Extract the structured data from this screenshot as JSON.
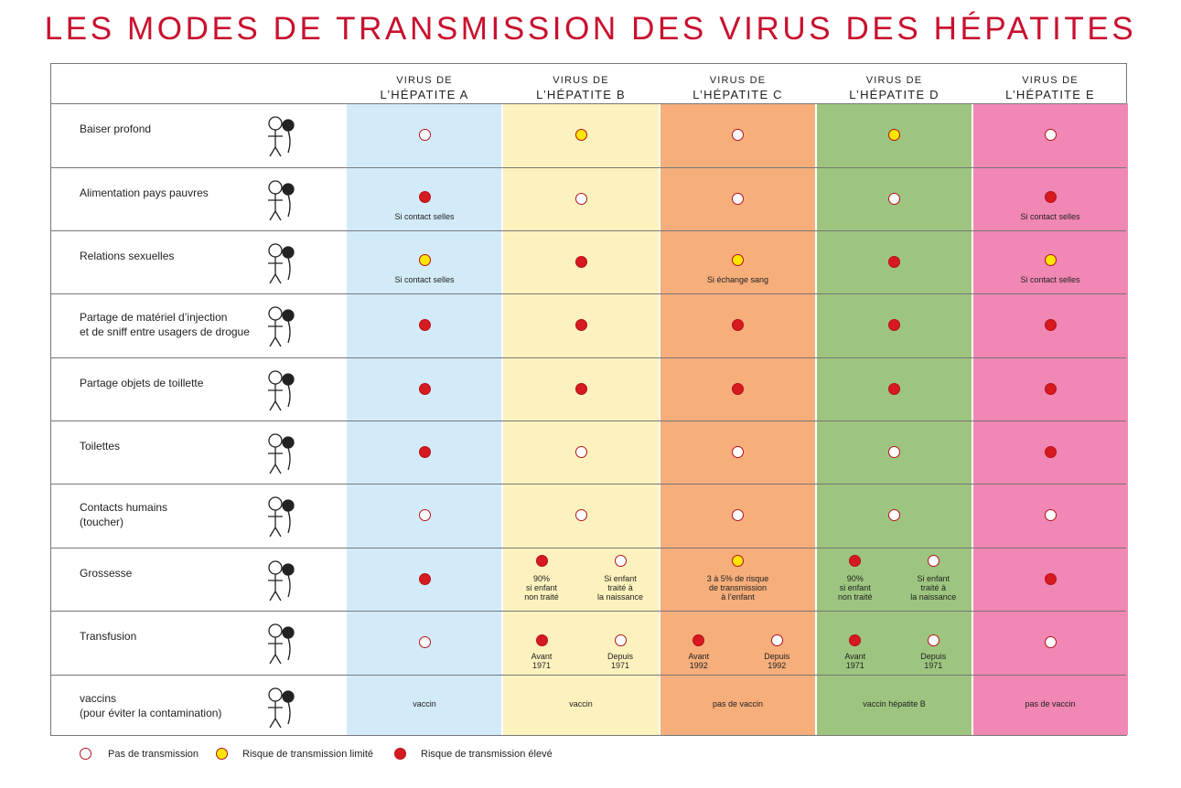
{
  "title": "LES MODES DE TRANSMISSION DES VIRUS DES HÉPATITES",
  "colors": {
    "A": "#d3ebf9",
    "B": "#fdf2bd",
    "C": "#f6ae7b",
    "D": "#9dc57f",
    "E": "#f087b4",
    "high": "#d71920",
    "low": "#ffe600"
  },
  "columns": [
    {
      "line1": "VIRUS DE",
      "line2": "L’HÉPATITE A"
    },
    {
      "line1": "VIRUS DE",
      "line2": "L’HÉPATITE B"
    },
    {
      "line1": "VIRUS DE",
      "line2": "L’HÉPATITE C"
    },
    {
      "line1": "VIRUS DE",
      "line2": "L’HÉPATITE D"
    },
    {
      "line1": "VIRUS DE",
      "line2": "L’HÉPATITE E"
    }
  ],
  "rows": [
    {
      "label": "Baiser profond",
      "icon": "kiss-icon",
      "cells": [
        [
          {
            "r": "none"
          }
        ],
        [
          {
            "r": "low"
          }
        ],
        [
          {
            "r": "none"
          }
        ],
        [
          {
            "r": "low"
          }
        ],
        [
          {
            "r": "none"
          }
        ]
      ]
    },
    {
      "label": "Alimentation pays pauvres",
      "icon": "eating-icon",
      "cells": [
        [
          {
            "r": "high",
            "t": "Si contact selles"
          }
        ],
        [
          {
            "r": "none"
          }
        ],
        [
          {
            "r": "none"
          }
        ],
        [
          {
            "r": "none"
          }
        ],
        [
          {
            "r": "high",
            "t": "Si contact selles"
          }
        ]
      ]
    },
    {
      "label": "Relations sexuelles",
      "icon": "couple-icon",
      "cells": [
        [
          {
            "r": "low",
            "t": "Si contact selles"
          }
        ],
        [
          {
            "r": "high"
          }
        ],
        [
          {
            "r": "low",
            "t": "Si échange sang"
          }
        ],
        [
          {
            "r": "high"
          }
        ],
        [
          {
            "r": "low",
            "t": "Si contact selles"
          }
        ]
      ]
    },
    {
      "label": "Partage de matériel d’injection\net de sniff entre usagers de drogue",
      "icon": "syringe-user-icon",
      "cells": [
        [
          {
            "r": "high"
          }
        ],
        [
          {
            "r": "high"
          }
        ],
        [
          {
            "r": "high"
          }
        ],
        [
          {
            "r": "high"
          }
        ],
        [
          {
            "r": "high"
          }
        ]
      ]
    },
    {
      "label": "Partage objets de toillette",
      "icon": "toiletries-icon",
      "cells": [
        [
          {
            "r": "high"
          }
        ],
        [
          {
            "r": "high"
          }
        ],
        [
          {
            "r": "high"
          }
        ],
        [
          {
            "r": "high"
          }
        ],
        [
          {
            "r": "high"
          }
        ]
      ]
    },
    {
      "label": "Toilettes",
      "icon": "toilet-icon",
      "cells": [
        [
          {
            "r": "high"
          }
        ],
        [
          {
            "r": "none"
          }
        ],
        [
          {
            "r": "none"
          }
        ],
        [
          {
            "r": "none"
          }
        ],
        [
          {
            "r": "high"
          }
        ]
      ]
    },
    {
      "label": "Contacts humains\n(toucher)",
      "icon": "hug-icon",
      "cells": [
        [
          {
            "r": "none"
          }
        ],
        [
          {
            "r": "none"
          }
        ],
        [
          {
            "r": "none"
          }
        ],
        [
          {
            "r": "none"
          }
        ],
        [
          {
            "r": "none"
          }
        ]
      ]
    },
    {
      "label": "Grossesse",
      "icon": "pregnancy-icon",
      "cells": [
        [
          {
            "r": "high"
          }
        ],
        [
          {
            "r": "high",
            "t": "90%\nsi enfant\nnon traité"
          },
          {
            "r": "none",
            "t": "Si enfant\ntraité à\nla naissance"
          }
        ],
        [
          {
            "r": "low",
            "t": "3 à 5% de risque\nde transmission\nà l’enfant"
          }
        ],
        [
          {
            "r": "high",
            "t": "90%\nsi enfant\nnon traité"
          },
          {
            "r": "none",
            "t": "Si enfant\ntraité à\nla naissance"
          }
        ],
        [
          {
            "r": "high"
          }
        ]
      ]
    },
    {
      "label": "Transfusion",
      "icon": "transfusion-icon",
      "cells": [
        [
          {
            "r": "none"
          }
        ],
        [
          {
            "r": "high",
            "t": "Avant\n1971"
          },
          {
            "r": "none",
            "t": "Depuis\n1971"
          }
        ],
        [
          {
            "r": "high",
            "t": "Avant\n1992"
          },
          {
            "r": "none",
            "t": "Depuis\n1992"
          }
        ],
        [
          {
            "r": "high",
            "t": "Avant\n1971"
          },
          {
            "r": "none",
            "t": "Depuis\n1971"
          }
        ],
        [
          {
            "r": "none"
          }
        ]
      ]
    },
    {
      "label": "vaccins\n(pour éviter la contamination)",
      "icon": "nurse-vaccine-icon",
      "texts": [
        "vaccin",
        "vaccin",
        "pas de vaccin",
        "vaccin hépatite B",
        "pas de vaccin"
      ]
    }
  ],
  "legend": [
    {
      "r": "none",
      "label": "Pas de transmission"
    },
    {
      "r": "low",
      "label": "Risque de transmission limité"
    },
    {
      "r": "high",
      "label": "Risque de transmission élevé"
    }
  ]
}
